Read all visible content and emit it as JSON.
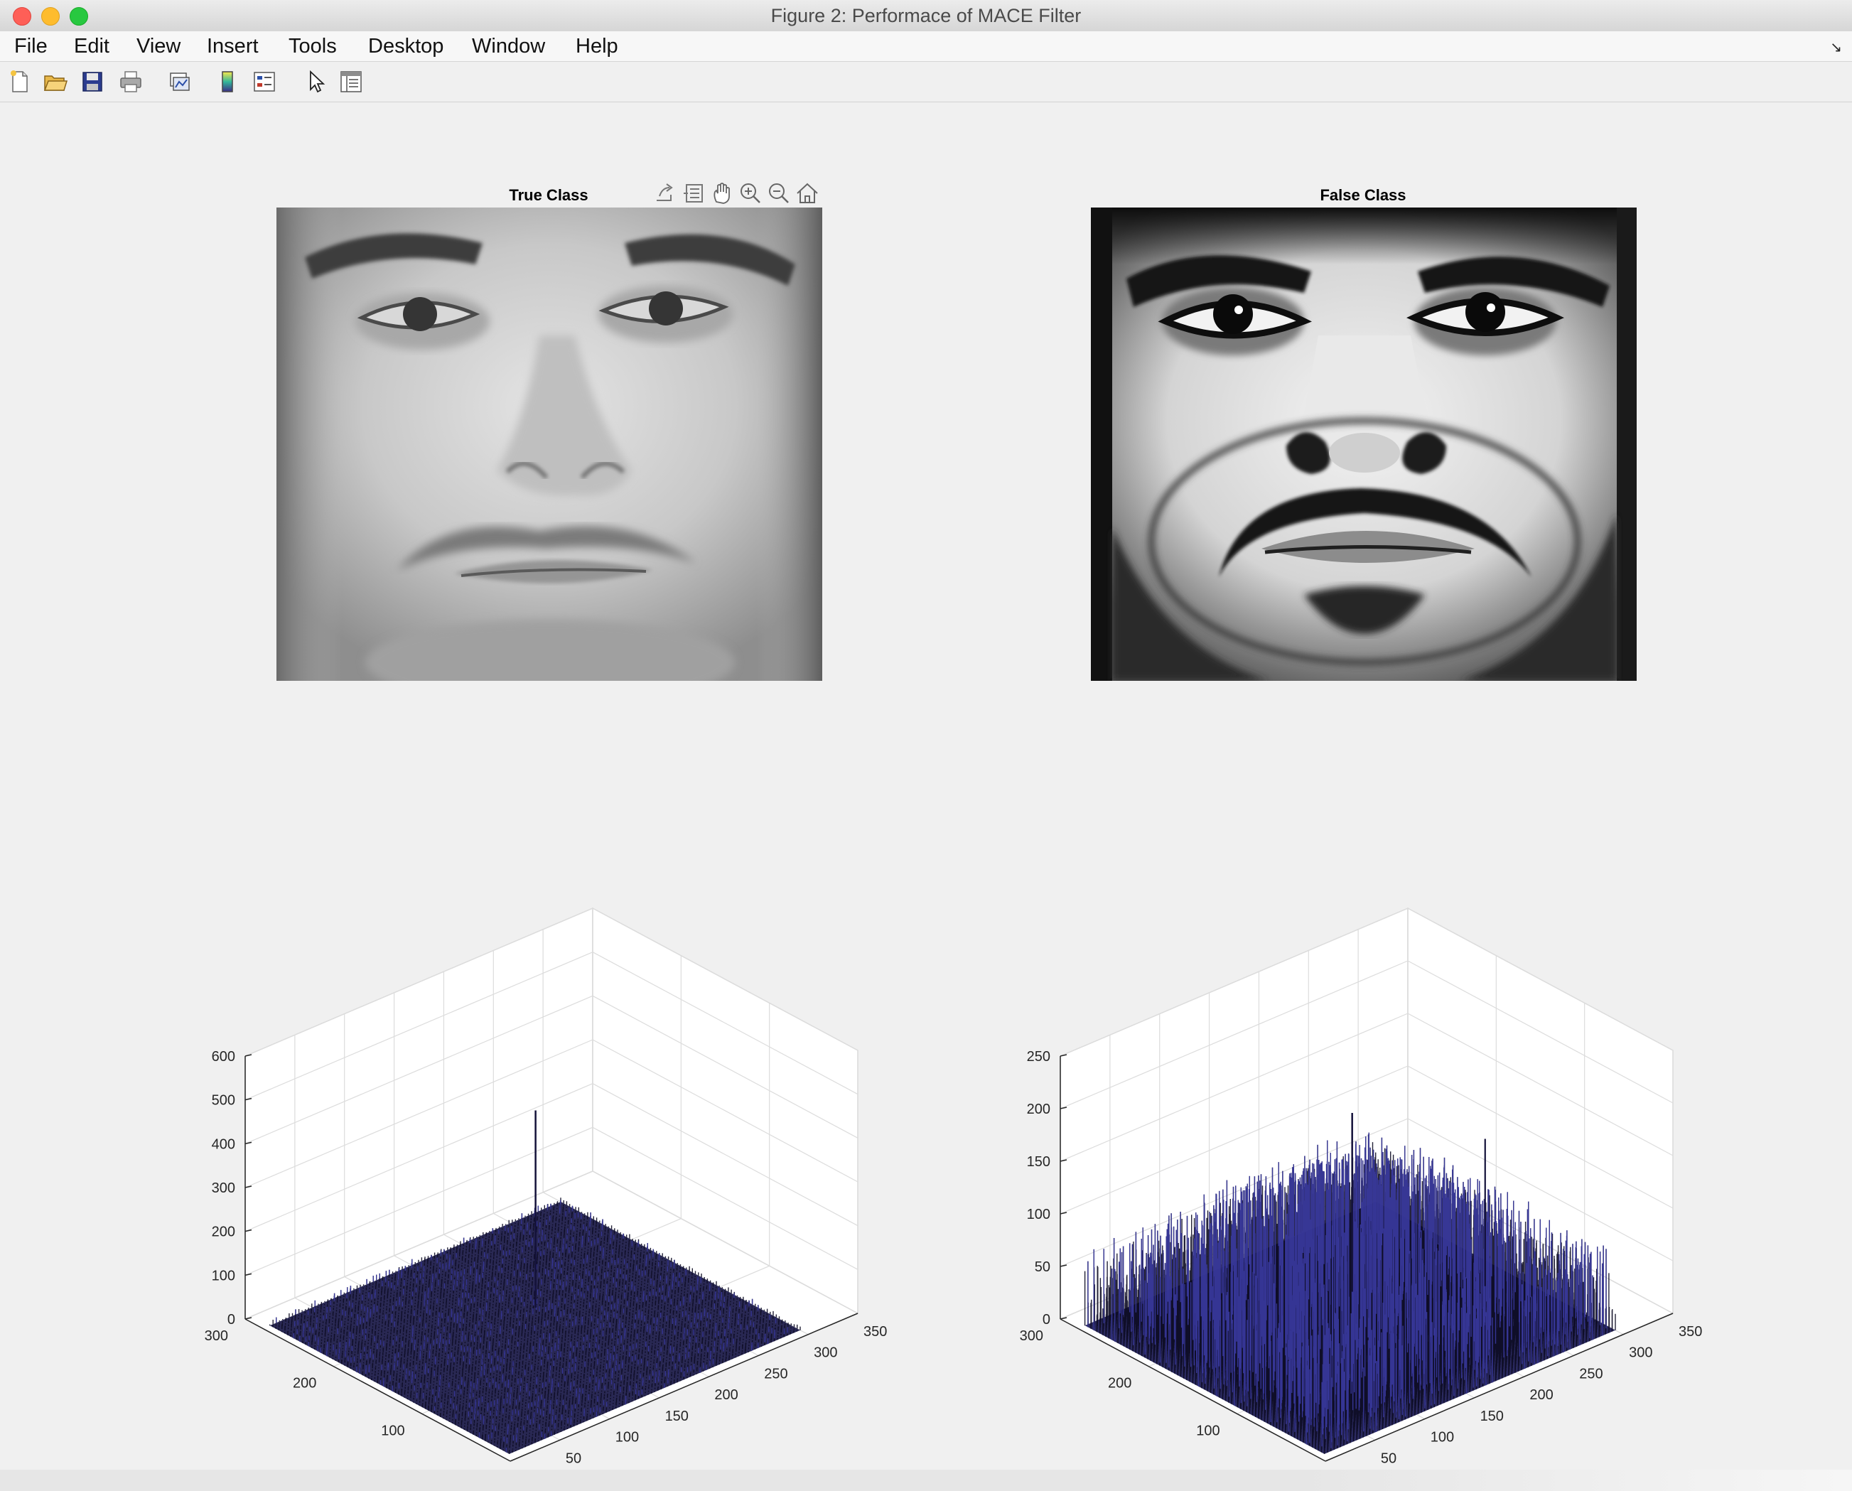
{
  "window": {
    "title": "Figure 2: Performace of MACE Filter"
  },
  "menubar": {
    "items": [
      {
        "label": "File",
        "name": "menu-file"
      },
      {
        "label": "Edit",
        "name": "menu-edit"
      },
      {
        "label": "View",
        "name": "menu-view"
      },
      {
        "label": "Insert",
        "name": "menu-insert"
      },
      {
        "label": "Tools",
        "name": "menu-tools"
      },
      {
        "label": "Desktop",
        "name": "menu-desktop"
      },
      {
        "label": "Window",
        "name": "menu-window"
      },
      {
        "label": "Help",
        "name": "menu-help"
      }
    ]
  },
  "toolbar": {
    "icons": [
      "new-figure-icon",
      "open-file-icon",
      "save-figure-icon",
      "print-figure-icon",
      "link-plot-icon",
      "insert-colorbar-icon",
      "insert-legend-icon",
      "edit-plot-icon",
      "property-inspector-icon"
    ]
  },
  "axes_toolbar": {
    "icons": [
      "export-icon",
      "brush-icon",
      "pan-hand-icon",
      "zoom-in-icon",
      "zoom-out-icon",
      "restore-view-home-icon"
    ]
  },
  "panels": {
    "true_class_title": "True Class",
    "false_class_title": "False Class"
  },
  "chart_data": [
    {
      "type": "surface",
      "panel": "true-class-correlation",
      "x_ticks": [
        "0",
        "50",
        "100",
        "150",
        "200",
        "250",
        "300",
        "350"
      ],
      "y_ticks": [
        "0",
        "100",
        "200",
        "300"
      ],
      "z_ticks": [
        "0",
        "100",
        "200",
        "300",
        "400",
        "500",
        "600"
      ],
      "xlim": [
        0,
        350
      ],
      "ylim": [
        0,
        300
      ],
      "zlim": [
        0,
        600
      ],
      "peak_value": 450,
      "noise_floor": 8,
      "grid": true,
      "colormap_color": "#1e1c4a"
    },
    {
      "type": "surface",
      "panel": "false-class-correlation",
      "x_ticks": [
        "0",
        "50",
        "100",
        "150",
        "200",
        "250",
        "300",
        "350"
      ],
      "y_ticks": [
        "0",
        "100",
        "200",
        "300"
      ],
      "z_ticks": [
        "0",
        "50",
        "100",
        "150",
        "200",
        "250"
      ],
      "xlim": [
        0,
        350
      ],
      "ylim": [
        0,
        300
      ],
      "zlim": [
        0,
        250
      ],
      "peak_value": 170,
      "noise_floor": 45,
      "grid": true,
      "colormap_color": "#1f1d55"
    }
  ]
}
